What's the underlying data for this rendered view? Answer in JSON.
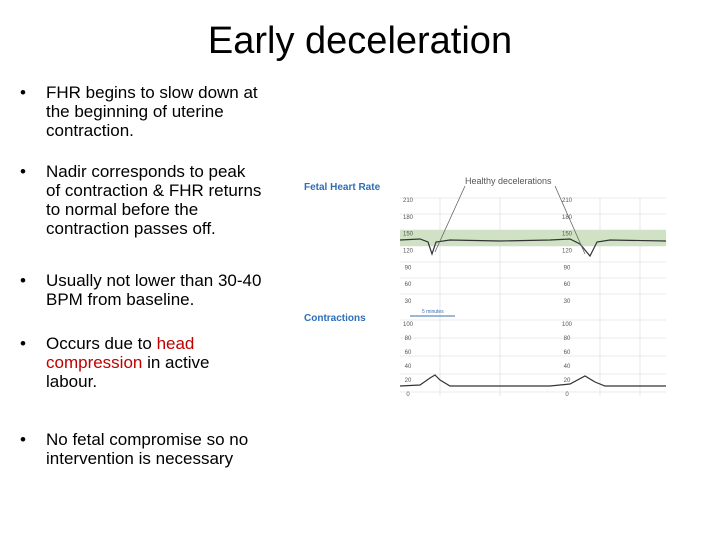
{
  "title": "Early deceleration",
  "bullets": [
    {
      "lines": [
        [
          {
            "text": "FHR begins to slow down at"
          }
        ],
        [
          {
            "text": "the beginning of uterine"
          }
        ],
        [
          {
            "text": "contraction."
          }
        ]
      ]
    },
    {
      "lines": [
        [
          {
            "text": "Nadir corresponds to peak"
          }
        ],
        [
          {
            "text": "of contraction & FHR returns"
          }
        ],
        [
          {
            "text": "to normal before the"
          }
        ],
        [
          {
            "text": "contraction passes off."
          }
        ]
      ]
    },
    {
      "lines": [
        [
          {
            "text": "Usually not lower than 30-40"
          }
        ],
        [
          {
            "text": "BPM from baseline."
          }
        ]
      ]
    },
    {
      "lines": [
        [
          {
            "text": "Occurs due to "
          },
          {
            "text": "head",
            "color": "#c00000"
          }
        ],
        [
          {
            "text": "compression",
            "color": "#c00000"
          },
          {
            "text": " in active"
          }
        ],
        [
          {
            "text": "labour."
          }
        ]
      ]
    },
    {
      "lines": [
        [
          {
            "text": "No fetal compromise so no"
          }
        ],
        [
          {
            "text": "intervention is necessary"
          }
        ]
      ]
    }
  ],
  "figure": {
    "fhr_label": "Fetal Heart Rate",
    "contractions_label": "Contractions",
    "annotation": "Healthy decelerations",
    "time_label": "5 minutes",
    "fhr_scale": [
      210,
      180,
      150,
      120,
      90,
      60,
      30
    ],
    "contraction_scale": [
      100,
      80,
      60,
      40,
      20,
      0
    ]
  }
}
